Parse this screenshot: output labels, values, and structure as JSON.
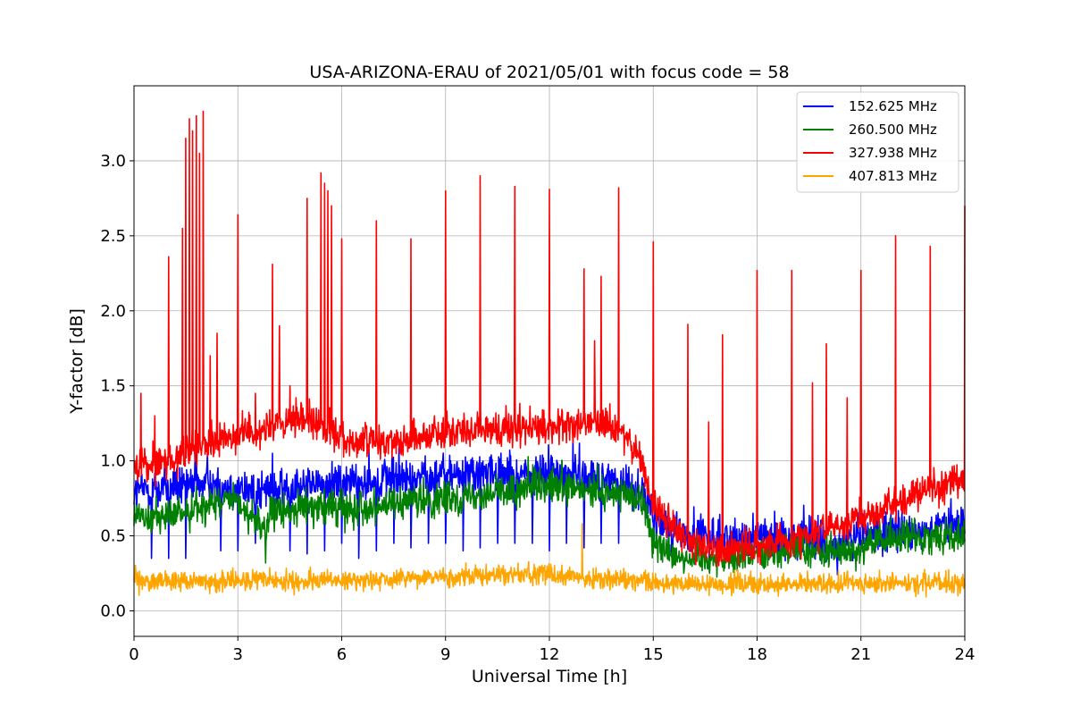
{
  "chart_data": {
    "type": "line",
    "title": "USA-ARIZONA-ERAU of 2021/05/01 with focus code = 58",
    "xlabel": "Universal Time [h]",
    "ylabel": "Y-factor [dB]",
    "xlim": [
      0,
      24
    ],
    "ylim": [
      -0.17,
      3.5
    ],
    "xticks": [
      0,
      3,
      6,
      9,
      12,
      15,
      18,
      21,
      24
    ],
    "yticks": [
      0.0,
      0.5,
      1.0,
      1.5,
      2.0,
      2.5,
      3.0
    ],
    "ytick_labels": [
      "0.0",
      "0.5",
      "1.0",
      "1.5",
      "2.0",
      "2.5",
      "3.0"
    ],
    "grid": true,
    "legend_position": "top-right",
    "series": [
      {
        "name": "152.625 MHz",
        "color": "#0000ff",
        "baseline": [
          [
            0,
            0.8
          ],
          [
            1,
            0.82
          ],
          [
            2,
            0.85
          ],
          [
            3,
            0.8
          ],
          [
            4,
            0.8
          ],
          [
            5,
            0.85
          ],
          [
            6,
            0.85
          ],
          [
            7,
            0.88
          ],
          [
            8,
            0.88
          ],
          [
            9,
            0.9
          ],
          [
            10,
            0.92
          ],
          [
            11,
            0.9
          ],
          [
            12,
            0.92
          ],
          [
            13,
            0.92
          ],
          [
            14,
            0.85
          ],
          [
            14.7,
            0.8
          ],
          [
            15,
            0.6
          ],
          [
            16,
            0.5
          ],
          [
            17,
            0.48
          ],
          [
            18,
            0.5
          ],
          [
            19,
            0.48
          ],
          [
            20,
            0.42
          ],
          [
            21,
            0.5
          ],
          [
            22,
            0.52
          ],
          [
            23,
            0.55
          ],
          [
            24,
            0.58
          ]
        ],
        "noise": 0.12,
        "dips": [
          [
            0.5,
            0.35
          ],
          [
            1.0,
            0.35
          ],
          [
            1.5,
            0.35
          ],
          [
            2.5,
            0.4
          ],
          [
            3.0,
            0.4
          ],
          [
            3.5,
            0.45
          ],
          [
            4.0,
            0.38
          ],
          [
            4.5,
            0.4
          ],
          [
            5.0,
            0.38
          ],
          [
            5.5,
            0.4
          ],
          [
            6.0,
            0.45
          ],
          [
            6.5,
            0.35
          ],
          [
            7.0,
            0.4
          ],
          [
            7.5,
            0.45
          ],
          [
            8.0,
            0.42
          ],
          [
            8.5,
            0.45
          ],
          [
            9.0,
            0.45
          ],
          [
            9.5,
            0.4
          ],
          [
            10.0,
            0.42
          ],
          [
            10.5,
            0.45
          ],
          [
            11.0,
            0.45
          ],
          [
            11.5,
            0.45
          ],
          [
            12.0,
            0.4
          ],
          [
            12.5,
            0.45
          ],
          [
            13.0,
            0.42
          ],
          [
            13.5,
            0.45
          ],
          [
            14.0,
            0.45
          ]
        ],
        "spikes": [
          [
            1.8,
            1.15
          ],
          [
            4.0,
            1.05
          ]
        ]
      },
      {
        "name": "260.500 MHz",
        "color": "#008000",
        "baseline": [
          [
            0,
            0.65
          ],
          [
            1,
            0.62
          ],
          [
            2,
            0.7
          ],
          [
            3,
            0.72
          ],
          [
            3.8,
            0.55
          ],
          [
            4,
            0.65
          ],
          [
            5,
            0.7
          ],
          [
            6,
            0.68
          ],
          [
            7,
            0.7
          ],
          [
            8,
            0.72
          ],
          [
            9,
            0.75
          ],
          [
            10,
            0.78
          ],
          [
            11,
            0.8
          ],
          [
            12,
            0.82
          ],
          [
            13,
            0.8
          ],
          [
            14,
            0.78
          ],
          [
            14.7,
            0.75
          ],
          [
            15,
            0.45
          ],
          [
            16,
            0.35
          ],
          [
            17,
            0.35
          ],
          [
            18,
            0.38
          ],
          [
            19,
            0.4
          ],
          [
            20,
            0.38
          ],
          [
            21,
            0.42
          ],
          [
            22,
            0.48
          ],
          [
            23,
            0.5
          ],
          [
            24,
            0.5
          ]
        ],
        "noise": 0.1,
        "dips": [
          [
            3.8,
            0.32
          ]
        ],
        "spikes": []
      },
      {
        "name": "327.938 MHz",
        "color": "#ff0000",
        "baseline": [
          [
            0,
            0.95
          ],
          [
            1,
            1.0
          ],
          [
            2,
            1.1
          ],
          [
            3,
            1.18
          ],
          [
            4,
            1.22
          ],
          [
            5,
            1.28
          ],
          [
            6,
            1.15
          ],
          [
            7,
            1.12
          ],
          [
            8,
            1.15
          ],
          [
            9,
            1.2
          ],
          [
            10,
            1.2
          ],
          [
            11,
            1.22
          ],
          [
            12,
            1.22
          ],
          [
            13,
            1.25
          ],
          [
            14,
            1.2
          ],
          [
            14.6,
            1.05
          ],
          [
            15,
            0.7
          ],
          [
            15.5,
            0.6
          ],
          [
            16,
            0.45
          ],
          [
            17,
            0.4
          ],
          [
            18,
            0.42
          ],
          [
            19,
            0.48
          ],
          [
            20,
            0.55
          ],
          [
            21,
            0.62
          ],
          [
            22,
            0.72
          ],
          [
            23,
            0.82
          ],
          [
            24,
            0.88
          ]
        ],
        "noise": 0.1,
        "dips": [],
        "spikes": [
          [
            0.2,
            1.45
          ],
          [
            0.6,
            1.3
          ],
          [
            1.0,
            2.36
          ],
          [
            1.4,
            2.55
          ],
          [
            1.5,
            3.15
          ],
          [
            1.6,
            3.28
          ],
          [
            1.7,
            3.2
          ],
          [
            1.8,
            3.3
          ],
          [
            1.9,
            3.05
          ],
          [
            2.0,
            3.33
          ],
          [
            2.2,
            1.7
          ],
          [
            2.4,
            1.85
          ],
          [
            3.0,
            2.64
          ],
          [
            3.5,
            1.45
          ],
          [
            4.0,
            2.31
          ],
          [
            4.2,
            1.9
          ],
          [
            4.5,
            1.5
          ],
          [
            5.0,
            2.75
          ],
          [
            5.4,
            2.92
          ],
          [
            5.5,
            2.85
          ],
          [
            5.6,
            2.8
          ],
          [
            5.7,
            2.7
          ],
          [
            6.0,
            2.48
          ],
          [
            7.0,
            2.6
          ],
          [
            8.0,
            2.48
          ],
          [
            9.0,
            2.8
          ],
          [
            10.0,
            2.9
          ],
          [
            11.0,
            2.83
          ],
          [
            12.0,
            2.81
          ],
          [
            13.0,
            2.28
          ],
          [
            13.3,
            1.8
          ],
          [
            13.5,
            2.23
          ],
          [
            14.0,
            2.82
          ],
          [
            15.0,
            2.46
          ],
          [
            16.0,
            1.91
          ],
          [
            16.6,
            1.26
          ],
          [
            17.0,
            1.84
          ],
          [
            18.0,
            2.27
          ],
          [
            19.0,
            2.27
          ],
          [
            19.6,
            1.52
          ],
          [
            20.0,
            1.78
          ],
          [
            20.6,
            1.42
          ],
          [
            21.0,
            2.27
          ],
          [
            22.0,
            2.5
          ],
          [
            23.0,
            2.43
          ],
          [
            24.0,
            2.7
          ]
        ]
      },
      {
        "name": "407.813 MHz",
        "color": "#ffa500",
        "baseline": [
          [
            0,
            0.2
          ],
          [
            3,
            0.2
          ],
          [
            6,
            0.2
          ],
          [
            9,
            0.22
          ],
          [
            12,
            0.25
          ],
          [
            13,
            0.22
          ],
          [
            15,
            0.18
          ],
          [
            18,
            0.18
          ],
          [
            21,
            0.18
          ],
          [
            24,
            0.18
          ]
        ],
        "noise": 0.06,
        "dips": [],
        "spikes": [
          [
            12.95,
            0.58
          ]
        ]
      }
    ]
  }
}
